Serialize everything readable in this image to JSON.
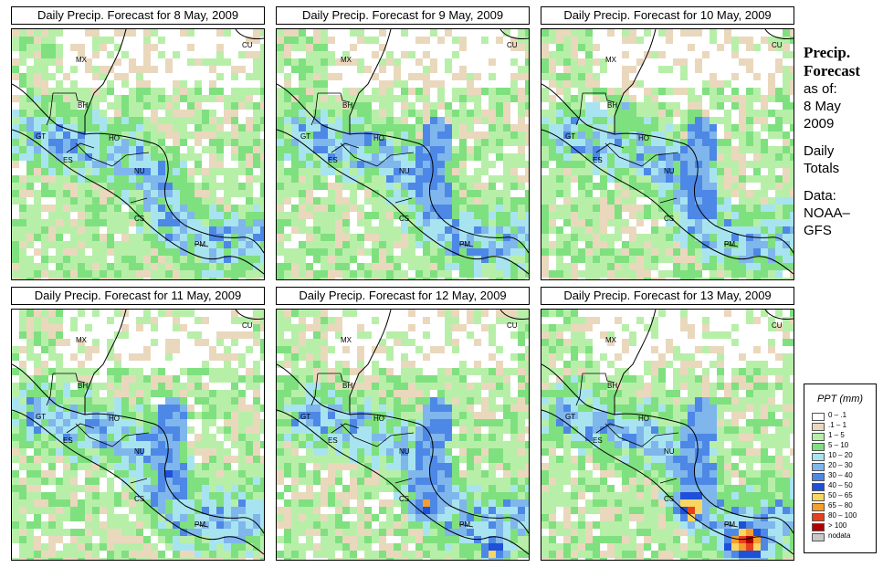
{
  "panels": [
    {
      "title": "Daily Precip. Forecast for  8 May, 2009"
    },
    {
      "title": "Daily Precip. Forecast for  9 May, 2009"
    },
    {
      "title": "Daily Precip. Forecast for  10 May, 2009"
    },
    {
      "title": "Daily Precip. Forecast for  11 May, 2009"
    },
    {
      "title": "Daily Precip. Forecast for  12 May, 2009"
    },
    {
      "title": "Daily Precip. Forecast for  13 May, 2009"
    }
  ],
  "country_labels": [
    "MX",
    "BH",
    "GT",
    "HO",
    "ES",
    "NU",
    "CS",
    "PM",
    "CU"
  ],
  "side": {
    "title_line1": "Precip.",
    "title_line2": "Forecast",
    "asof_line1": "as of:",
    "asof_line2": "8 May",
    "asof_line3": "2009",
    "totals_line1": "Daily",
    "totals_line2": "Totals",
    "data_line1": "Data:",
    "data_line2": "NOAA–",
    "data_line3": "GFS"
  },
  "legend": {
    "title": "PPT (mm)",
    "items": [
      {
        "label": "0 – .1",
        "color": "#ffffff"
      },
      {
        "label": ".1 – 1",
        "color": "#ead8bd"
      },
      {
        "label": "1 – 5",
        "color": "#b7efa9"
      },
      {
        "label": "5 – 10",
        "color": "#7fe07f"
      },
      {
        "label": "10 – 20",
        "color": "#a8e4f0"
      },
      {
        "label": "20 – 30",
        "color": "#7fb6ec"
      },
      {
        "label": "30 – 40",
        "color": "#4d88e6"
      },
      {
        "label": "40 – 50",
        "color": "#1f50d8"
      },
      {
        "label": "50 – 65",
        "color": "#f8d660"
      },
      {
        "label": "65 – 80",
        "color": "#f79d2c"
      },
      {
        "label": "80 – 100",
        "color": "#e8401c"
      },
      {
        "label": "> 100",
        "color": "#b00000"
      },
      {
        "label": "nodata",
        "color": "#c8c8c8"
      }
    ]
  }
}
